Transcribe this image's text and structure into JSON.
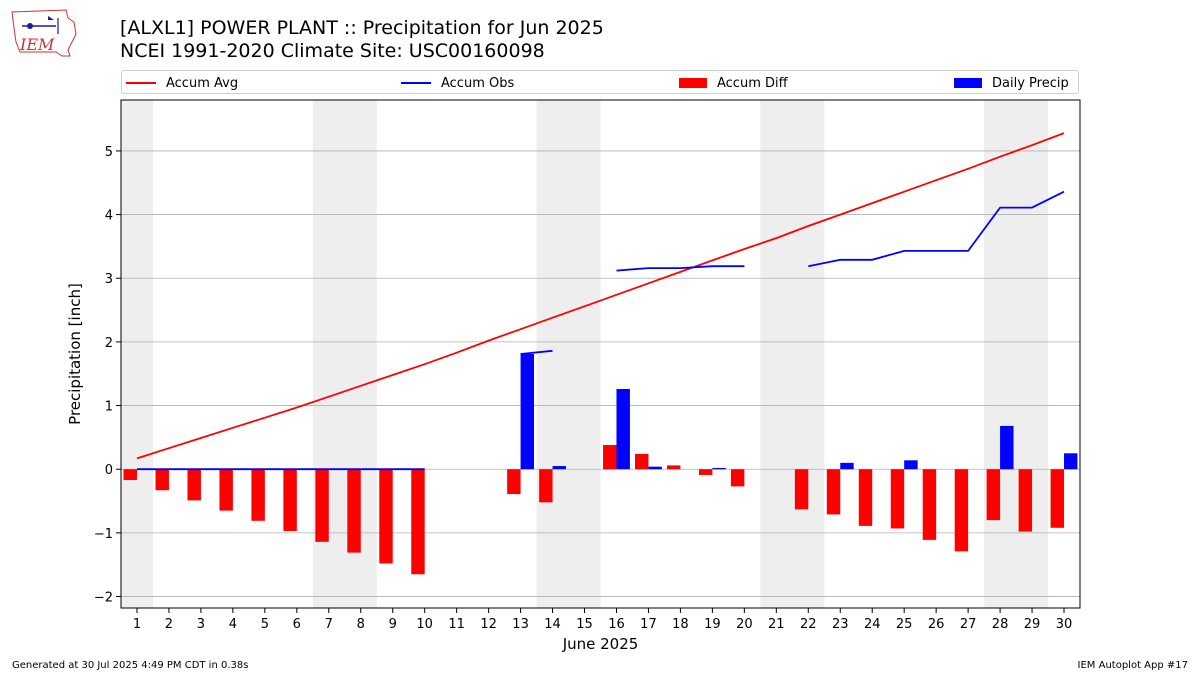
{
  "header": {
    "title_line1": "[ALXL1] POWER PLANT :: Precipitation for Jun 2025",
    "title_line2": "NCEI 1991-2020 Climate Site: USC00160098"
  },
  "logo": {
    "text": "IEM",
    "icon": "iem-iowa-logo"
  },
  "footer": {
    "left": "Generated at 30 Jul 2025 4:49 PM CDT in 0.38s",
    "right": "IEM Autoplot App #17"
  },
  "colors": {
    "avg": "#ff0000",
    "obs": "#0000ff",
    "diff": "#ff0000",
    "daily": "#0000ff",
    "weekend": "#eeeeee",
    "grid": "#b0b0b0"
  },
  "chart_data": {
    "type": "bar",
    "xlabel": "June 2025",
    "ylabel": "Precipitation [inch]",
    "xlim": [
      0.5,
      30.5
    ],
    "ylim": [
      -2.18,
      5.8
    ],
    "yticks": [
      -2,
      -1,
      0,
      1,
      2,
      3,
      4,
      5
    ],
    "ytick_labels": [
      "−2",
      "−1",
      "0",
      "1",
      "2",
      "3",
      "4",
      "5"
    ],
    "x": [
      1,
      2,
      3,
      4,
      5,
      6,
      7,
      8,
      9,
      10,
      11,
      12,
      13,
      14,
      15,
      16,
      17,
      18,
      19,
      20,
      21,
      22,
      23,
      24,
      25,
      26,
      27,
      28,
      29,
      30
    ],
    "grid": "horizontal",
    "legend_placement": "top",
    "weekend_shading": [
      [
        0.5,
        1.5
      ],
      [
        6.5,
        8.5
      ],
      [
        13.5,
        15.5
      ],
      [
        20.5,
        22.5
      ],
      [
        27.5,
        29.5
      ]
    ],
    "series": [
      {
        "name": "Accum Avg",
        "kind": "line",
        "values": [
          0.17,
          0.33,
          0.49,
          0.65,
          0.81,
          0.97,
          1.14,
          1.31,
          1.48,
          1.65,
          1.83,
          2.02,
          2.2,
          2.38,
          2.56,
          2.74,
          2.92,
          3.1,
          3.28,
          3.46,
          3.63,
          3.82,
          4.0,
          4.18,
          4.36,
          4.54,
          4.72,
          4.91,
          5.09,
          5.28
        ]
      },
      {
        "name": "Accum Obs",
        "kind": "line",
        "values": [
          0,
          0,
          0,
          0,
          0,
          0,
          0,
          0,
          0,
          0,
          null,
          null,
          1.81,
          1.86,
          null,
          3.12,
          3.16,
          3.16,
          3.19,
          3.19,
          null,
          3.19,
          3.29,
          3.29,
          3.43,
          3.43,
          3.43,
          4.11,
          4.11,
          4.36
        ]
      },
      {
        "name": "Accum Diff",
        "kind": "bar",
        "values": [
          -0.17,
          -0.33,
          -0.49,
          -0.65,
          -0.81,
          -0.97,
          -1.14,
          -1.31,
          -1.48,
          -1.65,
          null,
          null,
          -0.39,
          -0.52,
          null,
          0.38,
          0.24,
          0.06,
          -0.09,
          -0.27,
          null,
          -0.63,
          -0.71,
          -0.89,
          -0.93,
          -1.11,
          -1.29,
          -0.8,
          -0.98,
          -0.92
        ]
      },
      {
        "name": "Daily Precip",
        "kind": "bar",
        "values": [
          0,
          0,
          0,
          0,
          0,
          0,
          0,
          0,
          0,
          0,
          null,
          null,
          1.81,
          0.05,
          null,
          1.26,
          0.04,
          0,
          0.02,
          0,
          null,
          0,
          0.1,
          0,
          0.14,
          0,
          0,
          0.68,
          0,
          0.25
        ]
      }
    ]
  }
}
